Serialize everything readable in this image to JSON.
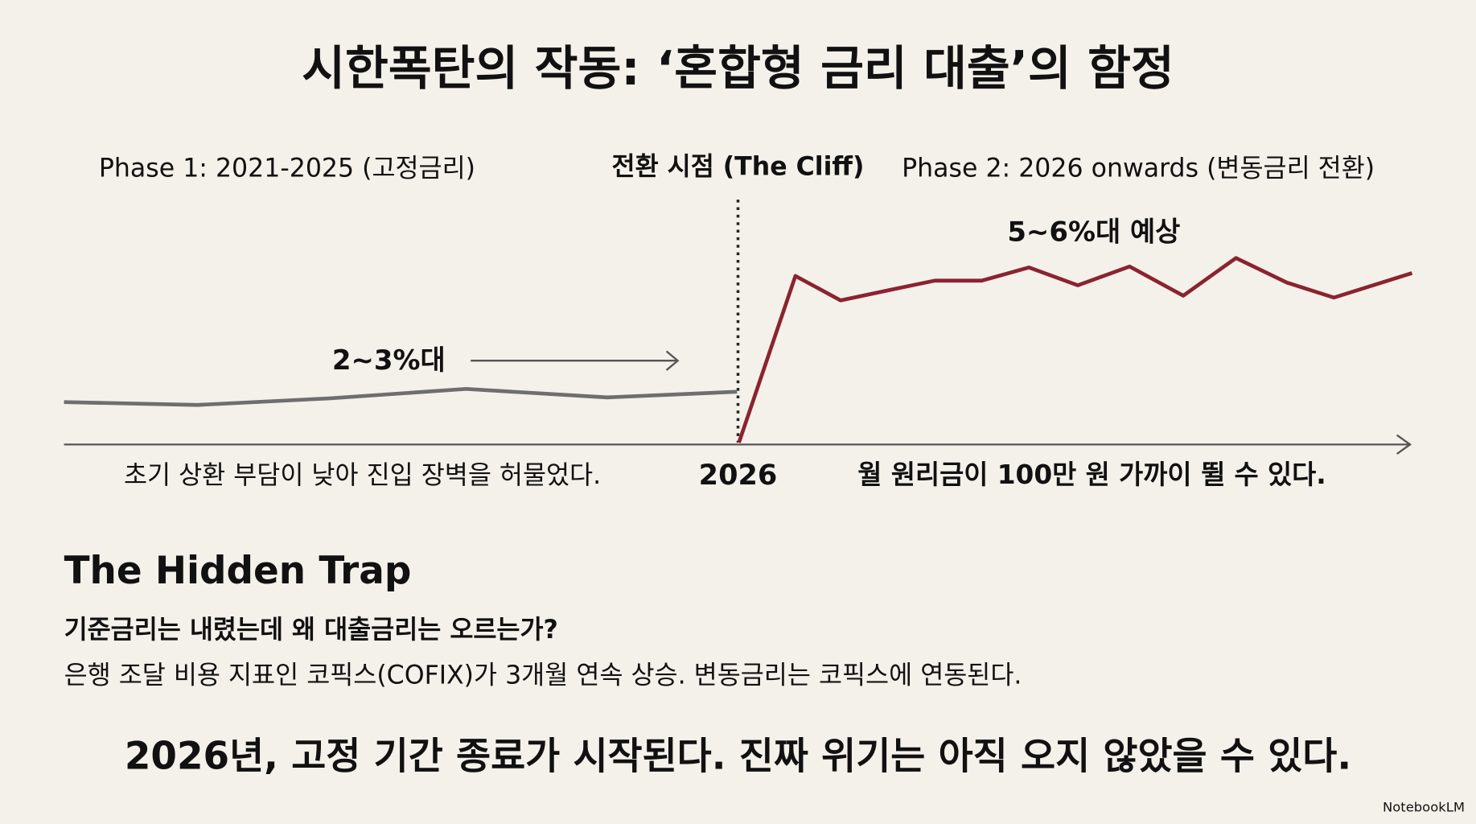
{
  "header": {
    "title": "시한폭탄의 작동: ‘혼합형 금리 대출’의 함정"
  },
  "timeline": {
    "phase1": "Phase 1: 2021-2025 (고정금리)",
    "cliff": "전환 시점 (The Cliff)",
    "phase2": "Phase 2: 2026 onwards (변동금리 전환)",
    "low_rate_label": "2~3%대",
    "high_rate_label": "5~6%대 예상",
    "left_caption": "초기 상환 부담이 낮아 진입 장벽을 허물었다.",
    "year": "2026",
    "right_caption": "월 원리금이 100만 원 가까이 뛸 수 있다."
  },
  "trap": {
    "heading": "The Hidden Trap",
    "question": "기준금리는 내렸는데 왜 대출금리는 오르는가?",
    "body": "은행 조달 비용 지표인 코픽스(COFIX)가 3개월 연속 상승. 변동금리는 코픽스에 연동된다."
  },
  "conclusion": "2026년, 고정 기간 종료가 시작된다. 진짜 위기는 아직 오지 않았을 수 있다.",
  "watermark": "NotebookLM"
}
